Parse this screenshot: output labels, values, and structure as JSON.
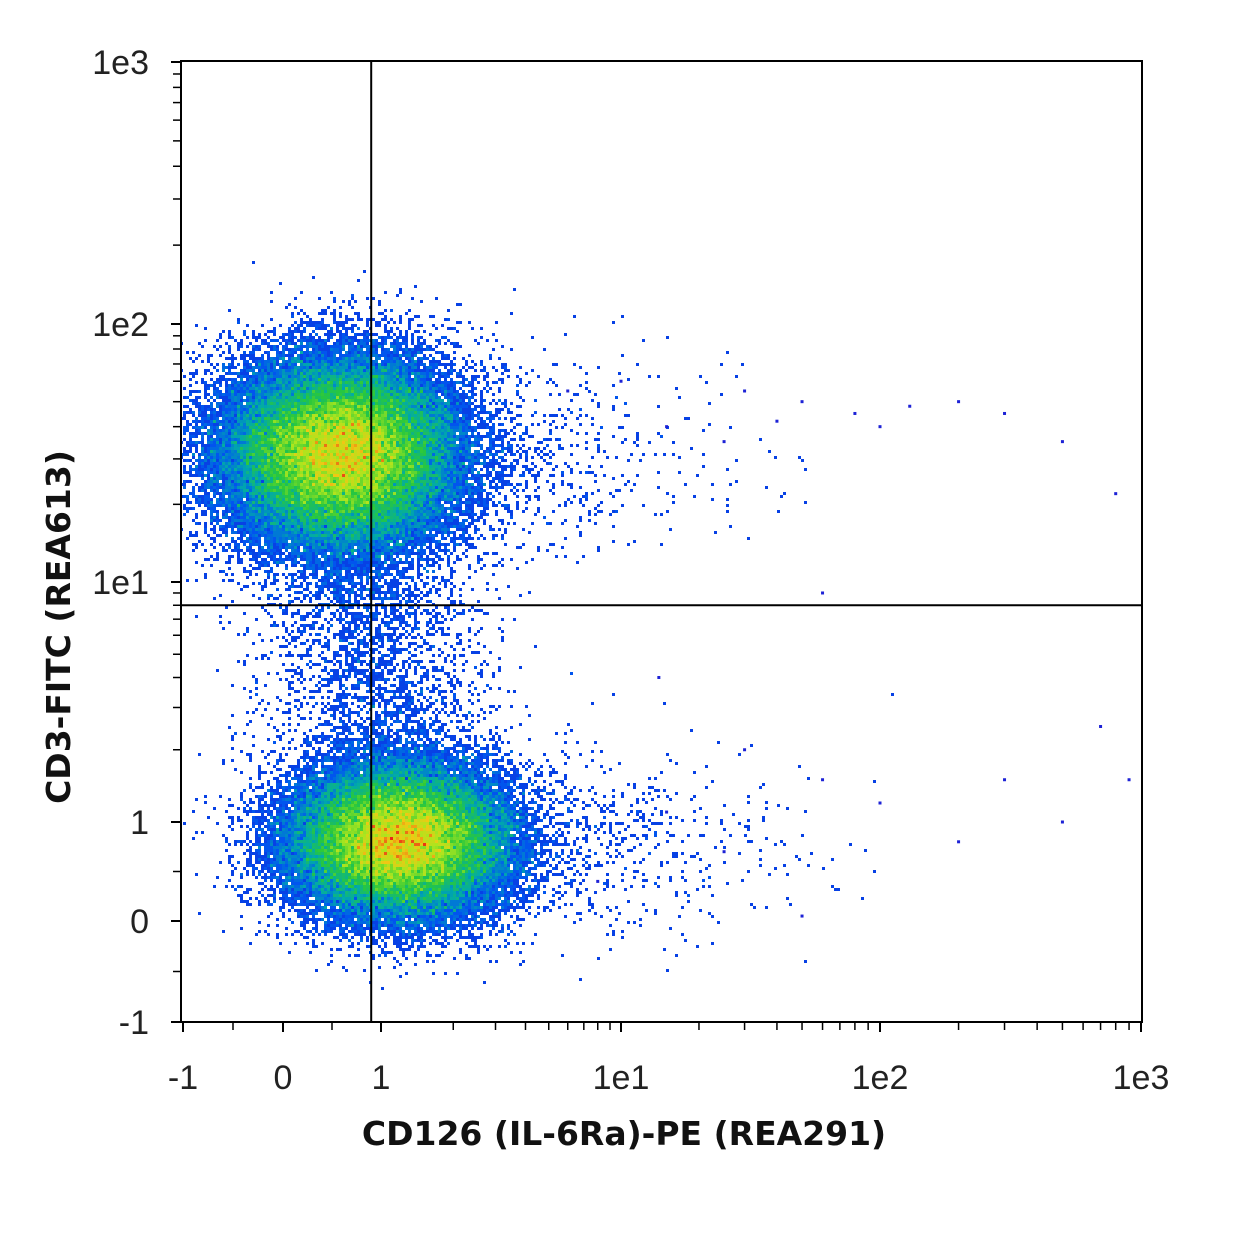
{
  "chart_data": {
    "type": "scatter",
    "xlabel": "CD126 (IL-6Ra)-PE (REA291)",
    "ylabel": "CD3-FITC (REA613)",
    "x_scale": "biexponential",
    "y_scale": "biexponential",
    "xlim": [
      -1,
      1000
    ],
    "ylim": [
      -1,
      1000
    ],
    "x_ticks": [
      "-1",
      "0",
      "1",
      "1e1",
      "1e2",
      "1e3"
    ],
    "y_ticks": [
      "-1",
      "0",
      "1",
      "1e1",
      "1e2",
      "1e3"
    ],
    "gate": {
      "x": 0.9,
      "y": 8
    },
    "density_coloring": "blue-green-yellow-red",
    "grid": false,
    "populations": [
      {
        "center": [
          0.6,
          32
        ],
        "spread_x": [
          -0.9,
          2.8
        ],
        "spread_y": [
          12,
          90
        ],
        "density": "high"
      },
      {
        "center": [
          1.2,
          0.8
        ],
        "spread_x": [
          -0.9,
          2.8
        ],
        "spread_y": [
          0,
          3
        ],
        "density": "high"
      }
    ],
    "sparse_points": [
      [
        6,
        55
      ],
      [
        10,
        60
      ],
      [
        15,
        40
      ],
      [
        25,
        35
      ],
      [
        30,
        55
      ],
      [
        40,
        42
      ],
      [
        50,
        50
      ],
      [
        60,
        9
      ],
      [
        80,
        45
      ],
      [
        100,
        40
      ],
      [
        130,
        48
      ],
      [
        200,
        50
      ],
      [
        300,
        45
      ],
      [
        500,
        35
      ],
      [
        800,
        22
      ],
      [
        14,
        4
      ],
      [
        30,
        2
      ],
      [
        60,
        1.5
      ],
      [
        100,
        1.2
      ],
      [
        200,
        0.8
      ],
      [
        300,
        1.5
      ],
      [
        500,
        1.0
      ],
      [
        700,
        2.5
      ],
      [
        900,
        1.5
      ],
      [
        50,
        0.05
      ],
      [
        8,
        0.4
      ],
      [
        15,
        1.1
      ],
      [
        25,
        0.7
      ]
    ]
  }
}
